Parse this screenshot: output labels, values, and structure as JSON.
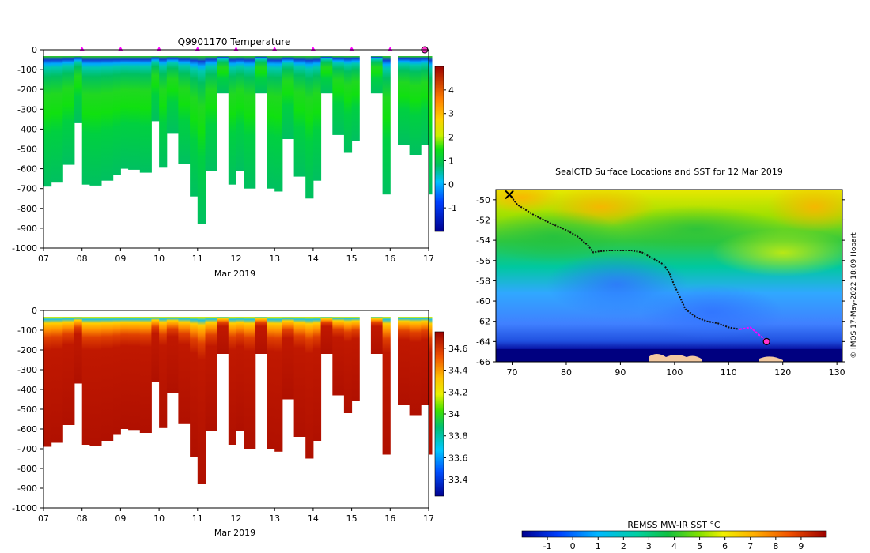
{
  "chart_data": [
    {
      "type": "heatmap",
      "title": "Q9901170  Temperature",
      "xlabel": "Mar 2019",
      "ylabel": "",
      "xlim": [
        7,
        17
      ],
      "ylim": [
        -1000,
        0
      ],
      "xticks": [
        "07",
        "08",
        "09",
        "10",
        "11",
        "12",
        "13",
        "14",
        "15",
        "16",
        "17"
      ],
      "yticks": [
        "0",
        "-100",
        "-200",
        "-300",
        "-400",
        "-500",
        "-600",
        "-700",
        "-800",
        "-900",
        "-1000"
      ],
      "colorbar": {
        "min": -2,
        "max": 5,
        "ticks": [
          "-1",
          "0",
          "1",
          "2",
          "3",
          "4"
        ],
        "tick_values": [
          -1,
          0,
          1,
          2,
          3,
          4
        ]
      },
      "surface_markers_day": [
        8,
        9,
        10,
        11,
        12,
        13,
        14,
        15,
        16
      ],
      "latest_marker_day": 17,
      "colors": {
        "marker": "#ff00ff",
        "latest_marker": "#ff33cc"
      },
      "profile_day": [
        7.0,
        7.2,
        7.5,
        7.8,
        8.0,
        8.2,
        8.5,
        8.8,
        9.0,
        9.2,
        9.5,
        9.8,
        10.0,
        10.2,
        10.5,
        10.8,
        11.0,
        11.2,
        11.5,
        11.8,
        12.0,
        12.2,
        12.5,
        12.8,
        13.0,
        13.2,
        13.5,
        13.8,
        14.0,
        14.2,
        14.5,
        14.8,
        15.0,
        15.2,
        15.5,
        15.8,
        16.0,
        16.2,
        16.5,
        16.8,
        17.0
      ],
      "profile_max_depth_m": [
        690,
        670,
        580,
        370,
        680,
        685,
        660,
        630,
        600,
        605,
        620,
        360,
        595,
        420,
        575,
        740,
        880,
        610,
        220,
        680,
        610,
        700,
        220,
        700,
        715,
        450,
        640,
        750,
        660,
        220,
        430,
        520,
        460,
        0,
        220,
        730,
        0,
        480,
        530,
        480,
        730
      ]
    },
    {
      "type": "heatmap",
      "title": "",
      "xlabel": "Mar 2019",
      "ylabel": "",
      "xlim": [
        7,
        17
      ],
      "ylim": [
        -1000,
        0
      ],
      "xticks": [
        "07",
        "08",
        "09",
        "10",
        "11",
        "12",
        "13",
        "14",
        "15",
        "16",
        "17"
      ],
      "yticks": [
        "0",
        "-100",
        "-200",
        "-300",
        "-400",
        "-500",
        "-600",
        "-700",
        "-800",
        "-900",
        "-1000"
      ],
      "colorbar": {
        "min": 33.25,
        "max": 34.75,
        "ticks": [
          "33.4",
          "33.6",
          "33.8",
          "34",
          "34.2",
          "34.4",
          "34.6"
        ],
        "tick_values": [
          33.4,
          33.6,
          33.8,
          34.0,
          34.2,
          34.4,
          34.6
        ]
      },
      "profile_day": [
        7.0,
        7.2,
        7.5,
        7.8,
        8.0,
        8.2,
        8.5,
        8.8,
        9.0,
        9.2,
        9.5,
        9.8,
        10.0,
        10.2,
        10.5,
        10.8,
        11.0,
        11.2,
        11.5,
        11.8,
        12.0,
        12.2,
        12.5,
        12.8,
        13.0,
        13.2,
        13.5,
        13.8,
        14.0,
        14.2,
        14.5,
        14.8,
        15.0,
        15.2,
        15.5,
        15.8,
        16.0,
        16.2,
        16.5,
        16.8,
        17.0
      ],
      "profile_max_depth_m": [
        690,
        670,
        580,
        370,
        680,
        685,
        660,
        630,
        600,
        605,
        620,
        360,
        595,
        420,
        575,
        740,
        880,
        610,
        220,
        680,
        610,
        700,
        220,
        700,
        715,
        450,
        640,
        750,
        660,
        220,
        430,
        520,
        460,
        0,
        220,
        730,
        0,
        480,
        530,
        480,
        730
      ]
    },
    {
      "type": "heatmap",
      "title": "SealCTD Surface Locations and SST for 12 Mar 2019",
      "xlabel": "",
      "ylabel": "",
      "xlim": [
        67,
        131
      ],
      "ylim": [
        -66,
        -49
      ],
      "xticks": [
        "70",
        "80",
        "90",
        "100",
        "110",
        "120",
        "130"
      ],
      "yticks": [
        "-50",
        "-52",
        "-54",
        "-56",
        "-58",
        "-60",
        "-62",
        "-64",
        "-66"
      ],
      "credit": "© IMOS 17-May-2022 18:09 Hobart",
      "colorbar": {
        "label": "REMSS MW-IR SST °C",
        "min": -2,
        "max": 10,
        "ticks": [
          "-1",
          "0",
          "1",
          "2",
          "3",
          "4",
          "5",
          "6",
          "7",
          "8",
          "9"
        ],
        "tick_values": [
          -1,
          0,
          1,
          2,
          3,
          4,
          5,
          6,
          7,
          8,
          9
        ]
      },
      "track": {
        "lon": [
          69.5,
          71,
          74,
          77,
          80,
          82,
          84,
          85,
          86,
          88,
          90,
          92,
          94,
          96,
          98,
          99,
          100,
          101,
          102,
          104,
          106,
          108,
          110,
          112,
          114,
          116,
          117
        ],
        "lat": [
          -49.5,
          -50.5,
          -51.5,
          -52.3,
          -53.0,
          -53.6,
          -54.5,
          -55.2,
          -55.1,
          -55.0,
          -55.0,
          -55.0,
          -55.2,
          -55.8,
          -56.4,
          -57.2,
          -58.5,
          -59.6,
          -60.8,
          -61.6,
          -62.0,
          -62.2,
          -62.6,
          -62.8,
          -62.6,
          -63.5,
          -64.0
        ],
        "recent_from_index": 23,
        "start": {
          "lon": 69.5,
          "lat": -49.5
        },
        "latest": {
          "lon": 117,
          "lat": -64.0
        }
      },
      "colors": {
        "track": "#111111",
        "recent_track": "#ff00ff",
        "latest_marker": "#ff33cc",
        "land": "#f2c8a0"
      }
    }
  ]
}
